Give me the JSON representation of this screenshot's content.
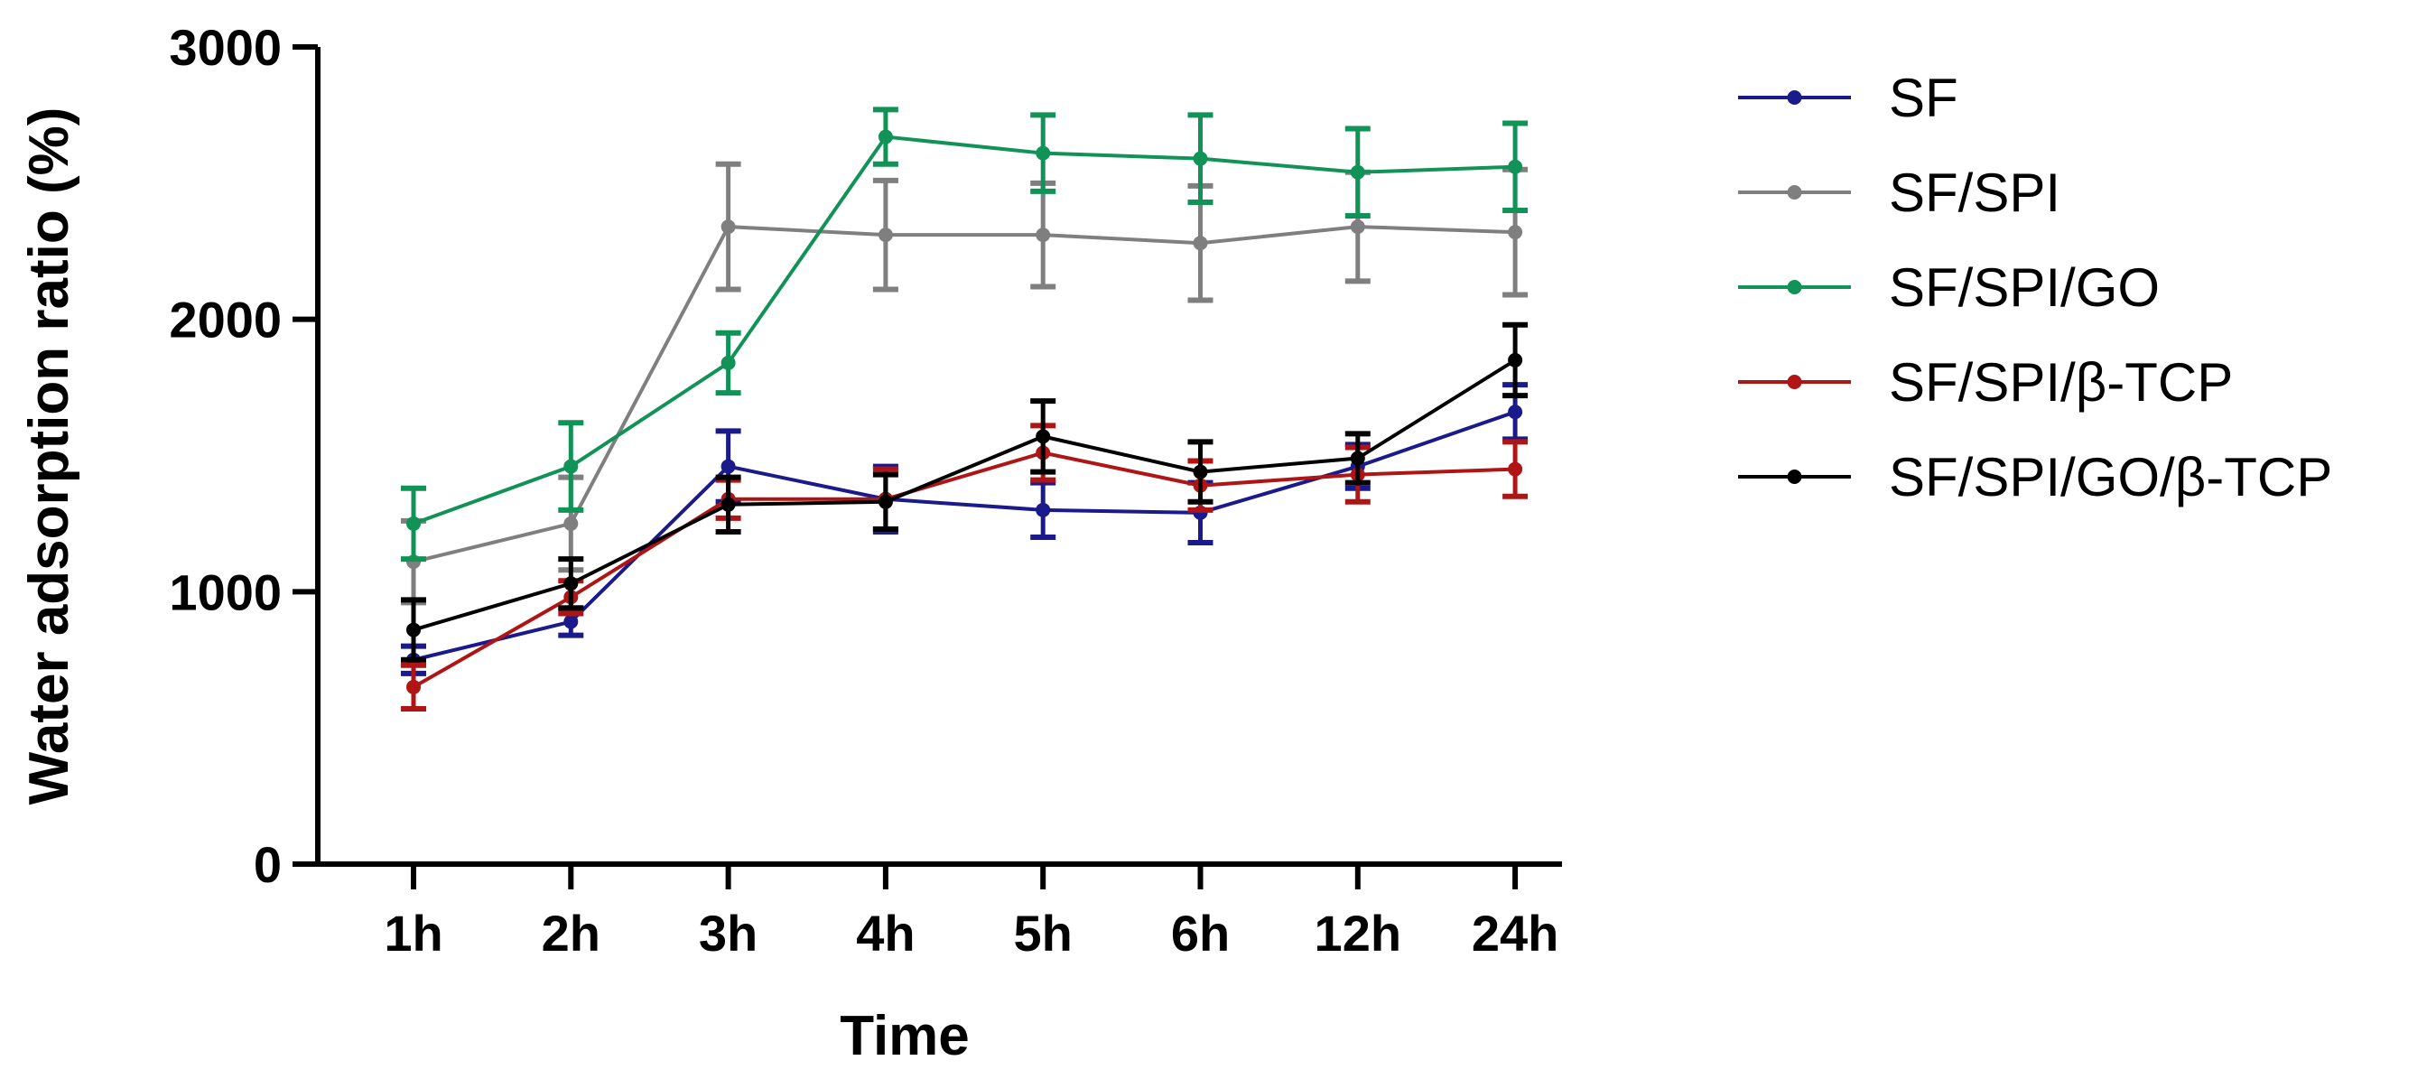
{
  "chart_data": {
    "type": "line",
    "title": "",
    "xlabel": "Time",
    "ylabel": "Water adsorption ratio (%)",
    "categories": [
      "1h",
      "2h",
      "3h",
      "4h",
      "5h",
      "6h",
      "12h",
      "24h"
    ],
    "ylim": [
      0,
      3000
    ],
    "yticks": [
      0,
      1000,
      2000,
      3000
    ],
    "grid": false,
    "legend_position": "right",
    "series": [
      {
        "name": "SF",
        "color": "#1a1a8c",
        "values": [
          750,
          890,
          1460,
          1340,
          1300,
          1290,
          1460,
          1660
        ],
        "errors": [
          50,
          50,
          130,
          120,
          100,
          110,
          80,
          100
        ]
      },
      {
        "name": "SF/SPI",
        "color": "#7f7f7f",
        "values": [
          1110,
          1250,
          2340,
          2310,
          2310,
          2280,
          2340,
          2320
        ],
        "errors": [
          150,
          170,
          230,
          200,
          190,
          210,
          200,
          230
        ]
      },
      {
        "name": "SF/SPI/GO",
        "color": "#119257",
        "values": [
          1250,
          1460,
          1840,
          2670,
          2610,
          2590,
          2540,
          2560
        ],
        "errors": [
          130,
          160,
          110,
          100,
          140,
          160,
          160,
          160
        ]
      },
      {
        "name": "SF/SPI/β-TCP",
        "color": "#b01515",
        "values": [
          650,
          980,
          1340,
          1340,
          1510,
          1390,
          1430,
          1450
        ],
        "errors": [
          80,
          60,
          70,
          110,
          100,
          90,
          100,
          100
        ]
      },
      {
        "name": "SF/SPI/GO/β-TCP",
        "color": "#000000",
        "values": [
          860,
          1030,
          1320,
          1330,
          1570,
          1440,
          1490,
          1850
        ],
        "errors": [
          110,
          90,
          100,
          100,
          130,
          110,
          90,
          130
        ]
      }
    ]
  }
}
